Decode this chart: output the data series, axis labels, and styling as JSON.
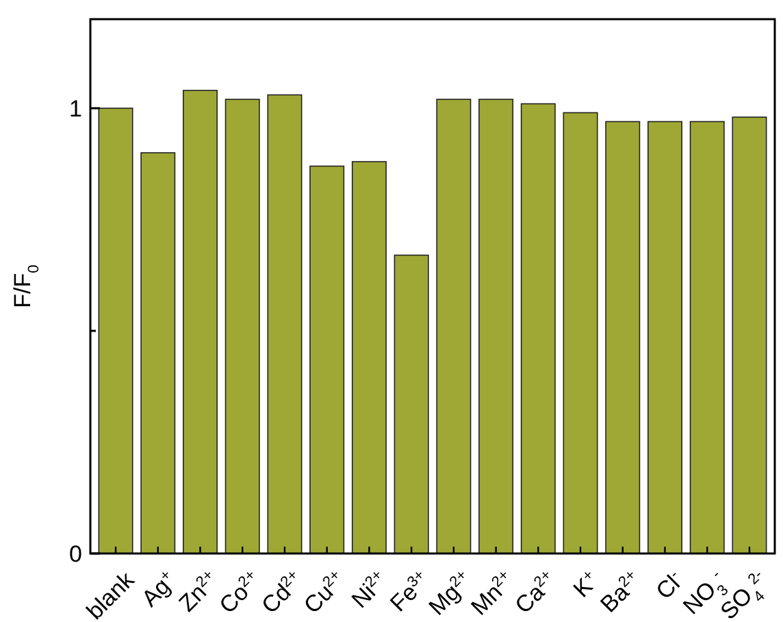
{
  "chart_data": {
    "type": "bar",
    "ylabel": "F/F$_{0}$",
    "categories": [
      "blank",
      "Ag$^{+}$",
      "Zn$^{2+}$",
      "Co$^{2+}$",
      "Cd$^{2+}$",
      "Cu$^{2+}$",
      "Ni$^{2+}$",
      "Fe$^{3+}$",
      "Mg$^{2+}$",
      "Mn$^{2+}$",
      "Ca$^{2+}$",
      "K$^{+}$",
      "Ba$^{2+}$",
      "Cl$^{-}$",
      "NO$_{3}$$^{-}$",
      "SO$_{4}$$^{2-}$"
    ],
    "values": [
      1.0,
      0.9,
      1.04,
      1.02,
      1.03,
      0.87,
      0.88,
      0.67,
      1.02,
      1.02,
      1.01,
      0.99,
      0.97,
      0.97,
      0.97,
      0.98
    ],
    "color": "#9fa835",
    "ylim": [
      0,
      1.2
    ],
    "yticks": [
      0,
      {
        "value": 0.5,
        "label": null
      },
      1
    ],
    "grid": false
  }
}
